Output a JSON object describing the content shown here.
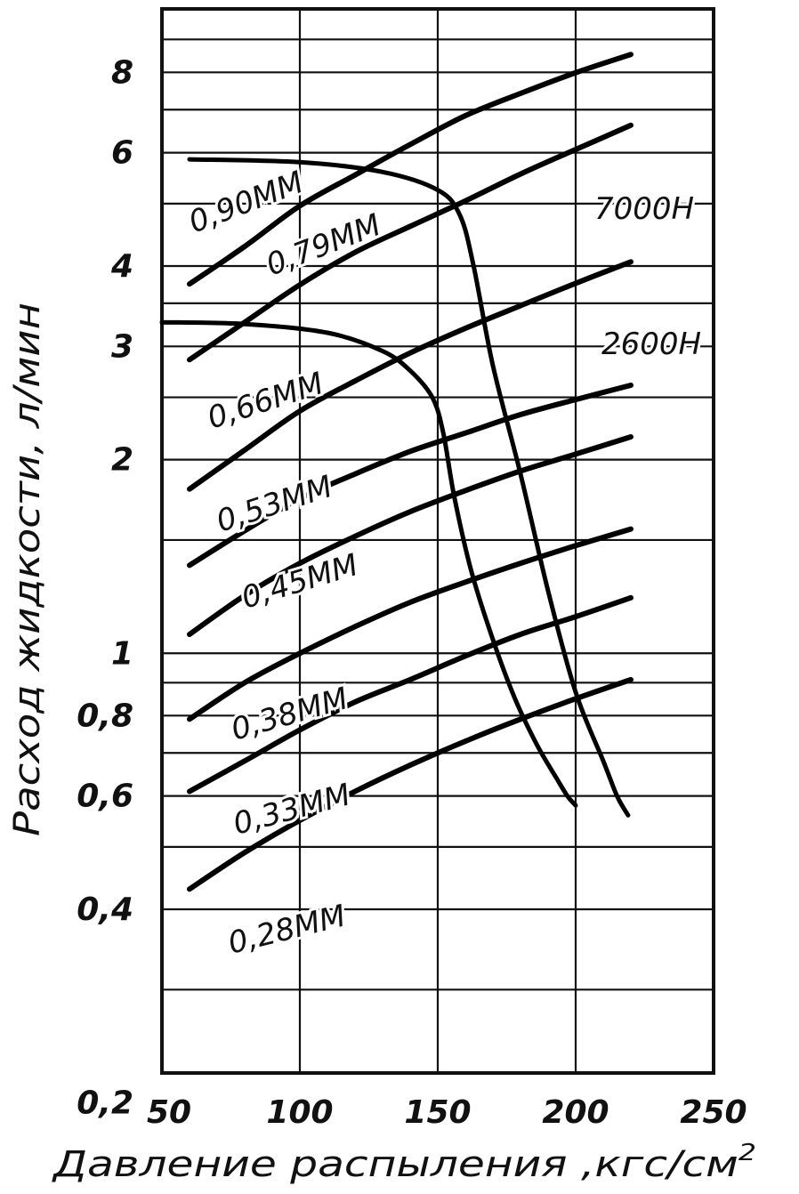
{
  "chart_data": {
    "type": "line",
    "xlabel": "Давление распыления ,кгс/см",
    "xlabel_sup": "2",
    "ylabel": "Расход жидкости, л/мин",
    "xlim": [
      50,
      250
    ],
    "ylim": [
      0.2,
      8
    ],
    "y_scale": "log",
    "grid": true,
    "x_ticks": [
      {
        "value": 50,
        "label": "50"
      },
      {
        "value": 100,
        "label": "100"
      },
      {
        "value": 150,
        "label": "150"
      },
      {
        "value": 200,
        "label": "200"
      },
      {
        "value": 250,
        "label": "250"
      }
    ],
    "y_ticks": [
      {
        "value": 0.2,
        "label": "0,2"
      },
      {
        "value": 0.4,
        "label": "0,4"
      },
      {
        "value": 0.6,
        "label": "0,6"
      },
      {
        "value": 0.8,
        "label": "0,8"
      },
      {
        "value": 1,
        "label": "1"
      },
      {
        "value": 2,
        "label": "2"
      },
      {
        "value": 3,
        "label": "3"
      },
      {
        "value": 4,
        "label": "4"
      },
      {
        "value": 6,
        "label": "6"
      },
      {
        "value": 8,
        "label": "8"
      }
    ],
    "series": [
      {
        "name": "0,90ММ",
        "x": [
          60,
          80,
          100,
          120,
          140,
          160,
          180,
          200,
          220
        ],
        "y": [
          3.75,
          4.29,
          4.96,
          5.54,
          6.18,
          6.85,
          7.42,
          7.99,
          8.53
        ]
      },
      {
        "name": "0,79ММ",
        "x": [
          60,
          80,
          100,
          120,
          140,
          160,
          180,
          200,
          220
        ],
        "y": [
          2.86,
          3.27,
          3.74,
          4.2,
          4.61,
          5.05,
          5.56,
          6.07,
          6.62
        ]
      },
      {
        "name": "0,66ММ",
        "x": [
          60,
          80,
          100,
          120,
          140,
          160,
          180,
          200,
          220
        ],
        "y": [
          1.8,
          2.07,
          2.38,
          2.65,
          2.93,
          3.2,
          3.47,
          3.76,
          4.06
        ]
      },
      {
        "name": "0,53ММ",
        "x": [
          60,
          80,
          100,
          120,
          140,
          160,
          180,
          200,
          220
        ],
        "y": [
          1.37,
          1.55,
          1.74,
          1.9,
          2.06,
          2.2,
          2.35,
          2.48,
          2.61
        ]
      },
      {
        "name": "0,45ММ",
        "x": [
          60,
          80,
          100,
          120,
          140,
          160,
          180,
          200,
          220
        ],
        "y": [
          1.07,
          1.23,
          1.38,
          1.52,
          1.66,
          1.79,
          1.92,
          2.04,
          2.17
        ]
      },
      {
        "name": "0,38ММ",
        "x": [
          60,
          80,
          100,
          120,
          140,
          160,
          180,
          200,
          220
        ],
        "y": [
          0.79,
          0.9,
          1.0,
          1.1,
          1.2,
          1.29,
          1.38,
          1.47,
          1.56
        ]
      },
      {
        "name": "0,33ММ",
        "x": [
          60,
          80,
          100,
          120,
          140,
          160,
          180,
          200,
          220
        ],
        "y": [
          0.61,
          0.68,
          0.76,
          0.84,
          0.91,
          0.99,
          1.07,
          1.14,
          1.22
        ]
      },
      {
        "name": "0,28ММ",
        "x": [
          60,
          80,
          100,
          120,
          140,
          160,
          180,
          200,
          220
        ],
        "y": [
          0.43,
          0.49,
          0.55,
          0.61,
          0.67,
          0.73,
          0.79,
          0.85,
          0.91
        ]
      }
    ],
    "limit_curves": [
      {
        "name": "7000Н",
        "x": [
          60,
          100,
          130,
          150,
          158,
          163,
          170,
          180,
          190,
          200,
          210,
          215,
          219
        ],
        "y": [
          5.86,
          5.8,
          5.6,
          5.25,
          4.8,
          4.0,
          2.8,
          1.9,
          1.25,
          0.87,
          0.68,
          0.6,
          0.56
        ]
      },
      {
        "name": "2600Н",
        "x": [
          50,
          80,
          110,
          130,
          140,
          148,
          152,
          156,
          162,
          170,
          178,
          186,
          193,
          197,
          200
        ],
        "y": [
          3.27,
          3.25,
          3.15,
          2.95,
          2.75,
          2.5,
          2.2,
          1.75,
          1.35,
          1.05,
          0.85,
          0.72,
          0.64,
          0.6,
          0.58
        ]
      }
    ]
  }
}
